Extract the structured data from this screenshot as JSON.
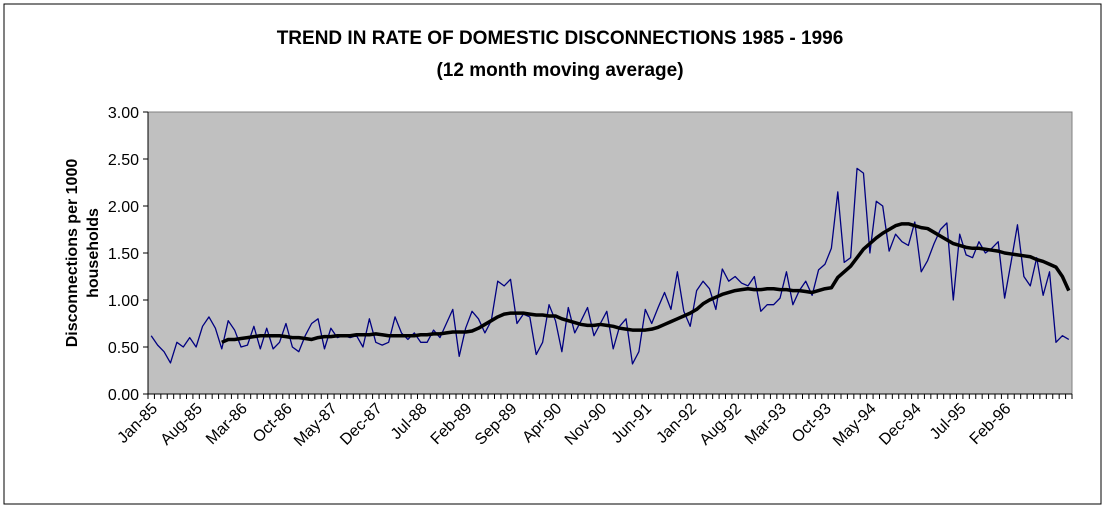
{
  "chart_data": {
    "type": "line",
    "title": "TREND IN RATE OF DOMESTIC DISCONNECTIONS 1985 - 1996",
    "subtitle": "(12 month moving average)",
    "y_label": "Disconnections per 1000 households",
    "categories": [
      "Jan-85",
      null,
      null,
      null,
      null,
      null,
      null,
      "Aug-85",
      null,
      null,
      null,
      null,
      null,
      null,
      "Mar-86",
      null,
      null,
      null,
      null,
      null,
      null,
      "Oct-86",
      null,
      null,
      null,
      null,
      null,
      null,
      "May-87",
      null,
      null,
      null,
      null,
      null,
      null,
      "Dec-87",
      null,
      null,
      null,
      null,
      null,
      null,
      "Jul-88",
      null,
      null,
      null,
      null,
      null,
      null,
      "Feb-89",
      null,
      null,
      null,
      null,
      null,
      null,
      "Sep-89",
      null,
      null,
      null,
      null,
      null,
      null,
      "Apr-90",
      null,
      null,
      null,
      null,
      null,
      null,
      "Nov-90",
      null,
      null,
      null,
      null,
      null,
      null,
      "Jun-91",
      null,
      null,
      null,
      null,
      null,
      null,
      "Jan-92",
      null,
      null,
      null,
      null,
      null,
      null,
      "Aug-92",
      null,
      null,
      null,
      null,
      null,
      null,
      "Mar-93",
      null,
      null,
      null,
      null,
      null,
      null,
      "Oct-93",
      null,
      null,
      null,
      null,
      null,
      null,
      "May-94",
      null,
      null,
      null,
      null,
      null,
      null,
      "Dec-94",
      null,
      null,
      null,
      null,
      null,
      null,
      "Jul-95",
      null,
      null,
      null,
      null,
      null,
      null,
      "Feb-96",
      null,
      null,
      null,
      null,
      null,
      null,
      null,
      null,
      null,
      null
    ],
    "series": [
      {
        "color": "#000080",
        "width": 1.3,
        "values": [
          0.62,
          0.52,
          0.45,
          0.33,
          0.55,
          0.5,
          0.6,
          0.5,
          0.72,
          0.82,
          0.7,
          0.48,
          0.78,
          0.68,
          0.5,
          0.52,
          0.72,
          0.48,
          0.7,
          0.48,
          0.55,
          0.75,
          0.5,
          0.45,
          0.62,
          0.75,
          0.8,
          0.48,
          0.7,
          0.6,
          0.62,
          0.6,
          0.62,
          0.5,
          0.8,
          0.55,
          0.52,
          0.55,
          0.82,
          0.65,
          0.58,
          0.65,
          0.55,
          0.55,
          0.68,
          0.6,
          0.75,
          0.9,
          0.4,
          0.7,
          0.88,
          0.8,
          0.65,
          0.78,
          1.2,
          1.15,
          1.22,
          0.75,
          0.85,
          0.82,
          0.42,
          0.55,
          0.95,
          0.78,
          0.45,
          0.92,
          0.65,
          0.78,
          0.92,
          0.62,
          0.75,
          0.88,
          0.48,
          0.72,
          0.8,
          0.32,
          0.45,
          0.9,
          0.75,
          0.92,
          1.08,
          0.9,
          1.3,
          0.88,
          0.72,
          1.1,
          1.2,
          1.12,
          0.9,
          1.33,
          1.2,
          1.25,
          1.18,
          1.15,
          1.25,
          0.88,
          0.95,
          0.95,
          1.02,
          1.3,
          0.95,
          1.1,
          1.2,
          1.05,
          1.32,
          1.38,
          1.55,
          2.15,
          1.4,
          1.45,
          2.4,
          2.35,
          1.5,
          2.05,
          2.0,
          1.52,
          1.7,
          1.62,
          1.58,
          1.83,
          1.3,
          1.42,
          1.6,
          1.75,
          1.82,
          1.0,
          1.7,
          1.48,
          1.45,
          1.62,
          1.5,
          1.55,
          1.62,
          1.02,
          1.4,
          1.8,
          1.25,
          1.15,
          1.45,
          1.05,
          1.3,
          0.55,
          0.62,
          0.58
        ]
      },
      {
        "color": "#000000",
        "width": 3.5,
        "values": [
          null,
          null,
          null,
          null,
          null,
          null,
          null,
          null,
          null,
          null,
          null,
          0.55,
          0.58,
          0.58,
          0.59,
          0.6,
          0.61,
          0.62,
          0.62,
          0.62,
          0.62,
          0.61,
          0.6,
          0.6,
          0.59,
          0.58,
          0.6,
          0.61,
          0.61,
          0.62,
          0.62,
          0.62,
          0.63,
          0.63,
          0.63,
          0.64,
          0.63,
          0.62,
          0.62,
          0.62,
          0.62,
          0.62,
          0.63,
          0.63,
          0.64,
          0.64,
          0.65,
          0.66,
          0.66,
          0.66,
          0.67,
          0.7,
          0.74,
          0.78,
          0.82,
          0.85,
          0.86,
          0.86,
          0.86,
          0.85,
          0.84,
          0.84,
          0.83,
          0.83,
          0.8,
          0.78,
          0.76,
          0.74,
          0.73,
          0.73,
          0.74,
          0.73,
          0.72,
          0.7,
          0.69,
          0.68,
          0.68,
          0.68,
          0.69,
          0.71,
          0.74,
          0.77,
          0.8,
          0.83,
          0.86,
          0.9,
          0.96,
          1.0,
          1.03,
          1.06,
          1.08,
          1.1,
          1.11,
          1.12,
          1.11,
          1.11,
          1.12,
          1.12,
          1.11,
          1.11,
          1.1,
          1.1,
          1.09,
          1.08,
          1.1,
          1.12,
          1.13,
          1.24,
          1.3,
          1.36,
          1.45,
          1.54,
          1.6,
          1.66,
          1.71,
          1.75,
          1.79,
          1.81,
          1.81,
          1.79,
          1.77,
          1.76,
          1.72,
          1.68,
          1.64,
          1.6,
          1.58,
          1.56,
          1.55,
          1.55,
          1.54,
          1.53,
          1.52,
          1.5,
          1.49,
          1.48,
          1.47,
          1.46,
          1.43,
          1.41,
          1.38,
          1.35,
          1.25,
          1.1
        ]
      }
    ],
    "ylim": [
      0,
      3
    ],
    "yticks": [
      {
        "value": 0,
        "label": "0.00"
      },
      {
        "value": 0.5,
        "label": "0.50"
      },
      {
        "value": 1,
        "label": "1.00"
      },
      {
        "value": 1.5,
        "label": "1.50"
      },
      {
        "value": 2,
        "label": "2.00"
      },
      {
        "value": 2.5,
        "label": "2.50"
      },
      {
        "value": 3,
        "label": "3.00"
      }
    ],
    "plot_background": "#c0c0c0"
  }
}
